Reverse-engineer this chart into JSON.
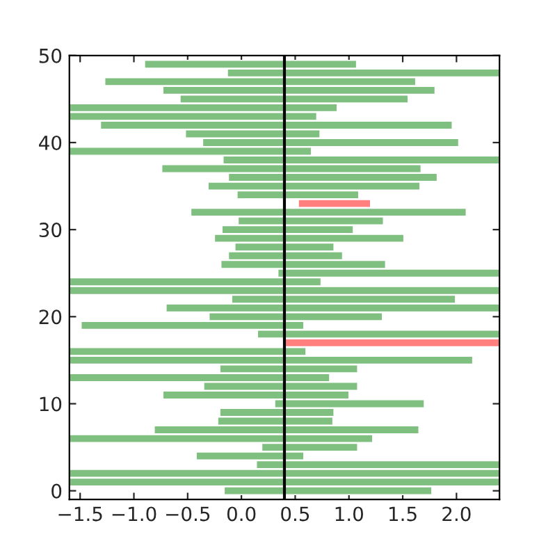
{
  "chart_data": {
    "type": "bar",
    "orientation": "horizontal",
    "x": [
      0,
      1,
      2,
      3,
      4,
      5,
      6,
      7,
      8,
      9,
      10,
      11,
      12,
      13,
      14,
      15,
      16,
      17,
      18,
      19,
      20,
      21,
      22,
      23,
      24,
      25,
      26,
      27,
      28,
      29,
      30,
      31,
      32,
      33,
      34,
      35,
      36,
      37,
      38,
      39,
      40,
      41,
      42,
      43,
      44,
      45,
      46,
      47,
      48,
      49
    ],
    "series": [
      {
        "color": "#7fbf7f",
        "base": [
          0.4,
          0.4,
          0.4,
          0.4,
          0.4,
          0.4,
          0.4,
          0.4,
          0.4,
          0.4,
          0.4,
          0.4,
          0.4,
          0.4,
          0.4,
          0.4,
          0.4,
          null,
          0.4,
          0.4,
          0.4,
          0.4,
          0.4,
          0.4,
          0.4,
          0.4,
          0.4,
          0.4,
          0.4,
          0.4,
          0.4,
          0.4,
          0.4,
          null,
          0.4,
          0.4,
          0.4,
          0.4,
          0.4,
          0.4,
          0.4,
          0.4,
          0.4,
          0.4,
          0.4,
          0.4,
          0.4,
          0.4,
          0.4,
          0.4
        ],
        "values": [
          -0.56,
          -2.0,
          -2.0,
          -0.26,
          -0.82,
          -0.21,
          -2.0,
          -1.21,
          -0.62,
          -0.6,
          -0.09,
          -1.13,
          -0.75,
          -2.0,
          -0.6,
          -2.0,
          -2.0,
          null,
          -0.25,
          -1.89,
          -0.7,
          -1.1,
          -0.49,
          -2.0,
          -2.0,
          -0.06,
          -0.59,
          -0.52,
          -0.46,
          -0.65,
          -0.58,
          -0.43,
          -0.87,
          null,
          -0.44,
          -0.71,
          -0.52,
          -1.14,
          -0.57,
          -2.0,
          -0.76,
          -0.92,
          -1.71,
          -2.0,
          -2.0,
          -0.97,
          -1.13,
          -1.67,
          -0.53,
          -1.3
        ]
      },
      {
        "color": "#7fbf7f",
        "base": [
          0.4,
          0.4,
          0.4,
          0.4,
          0.4,
          0.4,
          0.4,
          0.4,
          0.4,
          0.4,
          0.4,
          0.4,
          0.4,
          0.4,
          0.4,
          0.4,
          0.4,
          null,
          0.4,
          0.4,
          0.4,
          0.4,
          0.4,
          0.4,
          0.4,
          0.4,
          0.4,
          0.4,
          0.4,
          0.4,
          0.4,
          0.4,
          0.4,
          null,
          0.4,
          0.4,
          0.4,
          0.4,
          0.4,
          0.4,
          0.4,
          0.4,
          0.4,
          0.4,
          0.4,
          0.4,
          0.4,
          0.4,
          0.4,
          0.4
        ],
        "values": [
          1.37,
          2.0,
          2.0,
          2.0,
          0.18,
          0.68,
          0.82,
          1.25,
          0.45,
          0.46,
          1.3,
          0.6,
          0.68,
          0.42,
          0.68,
          1.75,
          0.2,
          null,
          2.0,
          0.18,
          0.91,
          2.0,
          1.59,
          2.0,
          0.34,
          2.0,
          0.94,
          0.54,
          0.46,
          1.11,
          0.64,
          0.92,
          1.69,
          null,
          0.69,
          1.26,
          1.42,
          1.27,
          2.0,
          0.25,
          1.62,
          0.33,
          1.56,
          0.3,
          0.49,
          1.15,
          1.4,
          1.22,
          2.0,
          0.67
        ]
      },
      {
        "color": "#ff7f7f",
        "base": [
          null,
          null,
          null,
          null,
          null,
          null,
          null,
          null,
          null,
          null,
          null,
          null,
          null,
          null,
          null,
          null,
          null,
          0.4,
          null,
          null,
          null,
          null,
          null,
          null,
          null,
          null,
          null,
          null,
          null,
          null,
          null,
          null,
          null,
          0.53,
          null,
          null,
          null,
          null,
          null,
          null,
          null,
          null,
          null,
          null,
          null,
          null,
          null,
          null,
          null,
          null
        ],
        "values": [
          null,
          null,
          null,
          null,
          null,
          null,
          null,
          null,
          null,
          null,
          null,
          null,
          null,
          null,
          null,
          null,
          null,
          2.0,
          null,
          null,
          null,
          null,
          null,
          null,
          null,
          null,
          null,
          null,
          null,
          null,
          null,
          null,
          null,
          0.67,
          null,
          null,
          null,
          null,
          null,
          null,
          null,
          null,
          null,
          null,
          null,
          null,
          null,
          null,
          null,
          null
        ]
      }
    ],
    "xlim": [
      -1.6,
      2.4
    ],
    "xticks": [
      {
        "value": -1.5,
        "label": "−1.5"
      },
      {
        "value": -1.0,
        "label": "−1.0"
      },
      {
        "value": -0.5,
        "label": "−0.5"
      },
      {
        "value": 0.0,
        "label": "0.0"
      },
      {
        "value": 0.5,
        "label": "0.5"
      },
      {
        "value": 1.0,
        "label": "1.0"
      },
      {
        "value": 1.5,
        "label": "1.5"
      },
      {
        "value": 2.0,
        "label": "2.0"
      }
    ],
    "ylim": [
      -1,
      50
    ],
    "yticks": [
      0,
      10,
      20,
      30,
      40,
      50
    ],
    "ref_lines": [
      {
        "axis": "x",
        "value": 0.4,
        "color": "#000000"
      }
    ],
    "grid": false,
    "legend": false
  }
}
